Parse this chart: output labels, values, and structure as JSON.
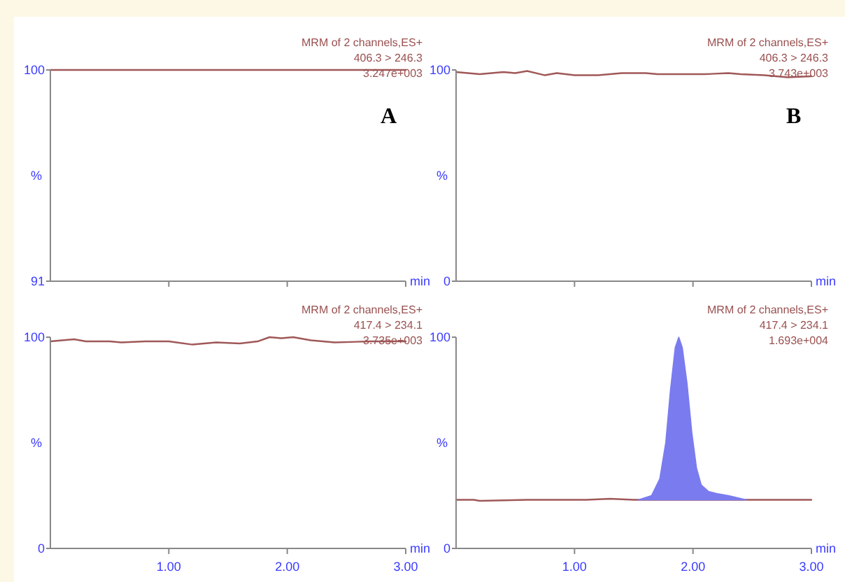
{
  "chart_data": [
    {
      "type": "line",
      "xlabel": "min",
      "ylabel": "%",
      "xlim": [
        0,
        3
      ],
      "ylim": [
        91,
        100
      ],
      "xticks": [
        {
          "value": 1,
          "label": null
        },
        {
          "value": 2,
          "label": null
        },
        {
          "value": 3,
          "label": null
        }
      ],
      "yticks": [
        91,
        100
      ],
      "tick_labels": "y",
      "annotations": [
        "MRM of 2 channels,ES+",
        "406.3 > 246.3",
        "3.247e+003",
        "A"
      ],
      "x": [
        0,
        0.5,
        1,
        1.5,
        2,
        2.5,
        3
      ],
      "series": [
        {
          "color": "#a05858",
          "values": [
            100,
            100,
            100,
            100,
            100,
            100,
            100
          ]
        }
      ]
    },
    {
      "type": "line",
      "xlabel": "min",
      "ylabel": "%",
      "xlim": [
        0,
        3
      ],
      "ylim": [
        0,
        100
      ],
      "xticks": [
        {
          "value": 1,
          "label": null
        },
        {
          "value": 2,
          "label": null
        },
        {
          "value": 3,
          "label": null
        }
      ],
      "yticks": [
        0,
        100
      ],
      "tick_labels": "y",
      "annotations": [
        "MRM of 2 channels,ES+",
        "406.3 > 246.3",
        "3.743e+003",
        "B"
      ],
      "x": [
        0,
        0.2,
        0.4,
        0.5,
        0.6,
        0.75,
        0.85,
        1.0,
        1.2,
        1.4,
        1.6,
        1.7,
        2.1,
        2.3,
        2.4,
        2.6,
        2.8,
        3.0
      ],
      "series": [
        {
          "color": "#a05858",
          "values": [
            99,
            98,
            99,
            98.5,
            99.5,
            97.5,
            98.5,
            97.5,
            97.5,
            98.5,
            98.5,
            98,
            98,
            98.5,
            98,
            97.5,
            96.5,
            97
          ]
        }
      ]
    },
    {
      "type": "line",
      "xlabel": "min",
      "ylabel": "%",
      "xlim": [
        0,
        3
      ],
      "ylim": [
        0,
        100
      ],
      "xticks": [
        {
          "value": 1,
          "label": "1.00"
        },
        {
          "value": 2,
          "label": "2.00"
        },
        {
          "value": 3,
          "label": "3.00"
        }
      ],
      "yticks": [
        0,
        100
      ],
      "annotations": [
        "MRM of 2 channels,ES+",
        "417.4 > 234.1",
        "3.735e+003"
      ],
      "x": [
        0,
        0.2,
        0.3,
        0.5,
        0.6,
        0.8,
        1.0,
        1.2,
        1.4,
        1.6,
        1.75,
        1.85,
        1.95,
        2.05,
        2.2,
        2.4,
        2.7,
        3.0
      ],
      "series": [
        {
          "color": "#a05858",
          "values": [
            98,
            99,
            98,
            98,
            97.5,
            98,
            98,
            96.5,
            97.5,
            97,
            98,
            100,
            99.5,
            100,
            98.5,
            97.5,
            98,
            98
          ]
        }
      ]
    },
    {
      "type": "line",
      "xlabel": "min",
      "ylabel": "%",
      "xlim": [
        0,
        3
      ],
      "ylim": [
        0,
        100
      ],
      "xticks": [
        {
          "value": 1,
          "label": "1.00"
        },
        {
          "value": 2,
          "label": "2.00"
        },
        {
          "value": 3,
          "label": "3.00"
        }
      ],
      "yticks": [
        0,
        100
      ],
      "annotations": [
        "MRM of 2 channels,ES+",
        "417.4 > 234.1",
        "1.693e+004"
      ],
      "series": [
        {
          "color": "#a05858",
          "x": [
            0,
            0.15,
            0.2,
            0.6,
            1.1,
            1.3,
            1.5,
            1.54,
            2.45,
            3.0
          ],
          "values": [
            23,
            23,
            22.5,
            23,
            23,
            23.5,
            23,
            23,
            23,
            23
          ]
        },
        {
          "type": "area",
          "color": "#7b7bf0",
          "x": [
            1.54,
            1.65,
            1.72,
            1.77,
            1.81,
            1.85,
            1.88,
            1.91,
            1.95,
            1.99,
            2.03,
            2.07,
            2.13,
            2.2,
            2.3,
            2.45
          ],
          "values": [
            23,
            25,
            33,
            50,
            75,
            95,
            100,
            95,
            78,
            55,
            38,
            30,
            27,
            26,
            25,
            23
          ]
        }
      ]
    }
  ]
}
